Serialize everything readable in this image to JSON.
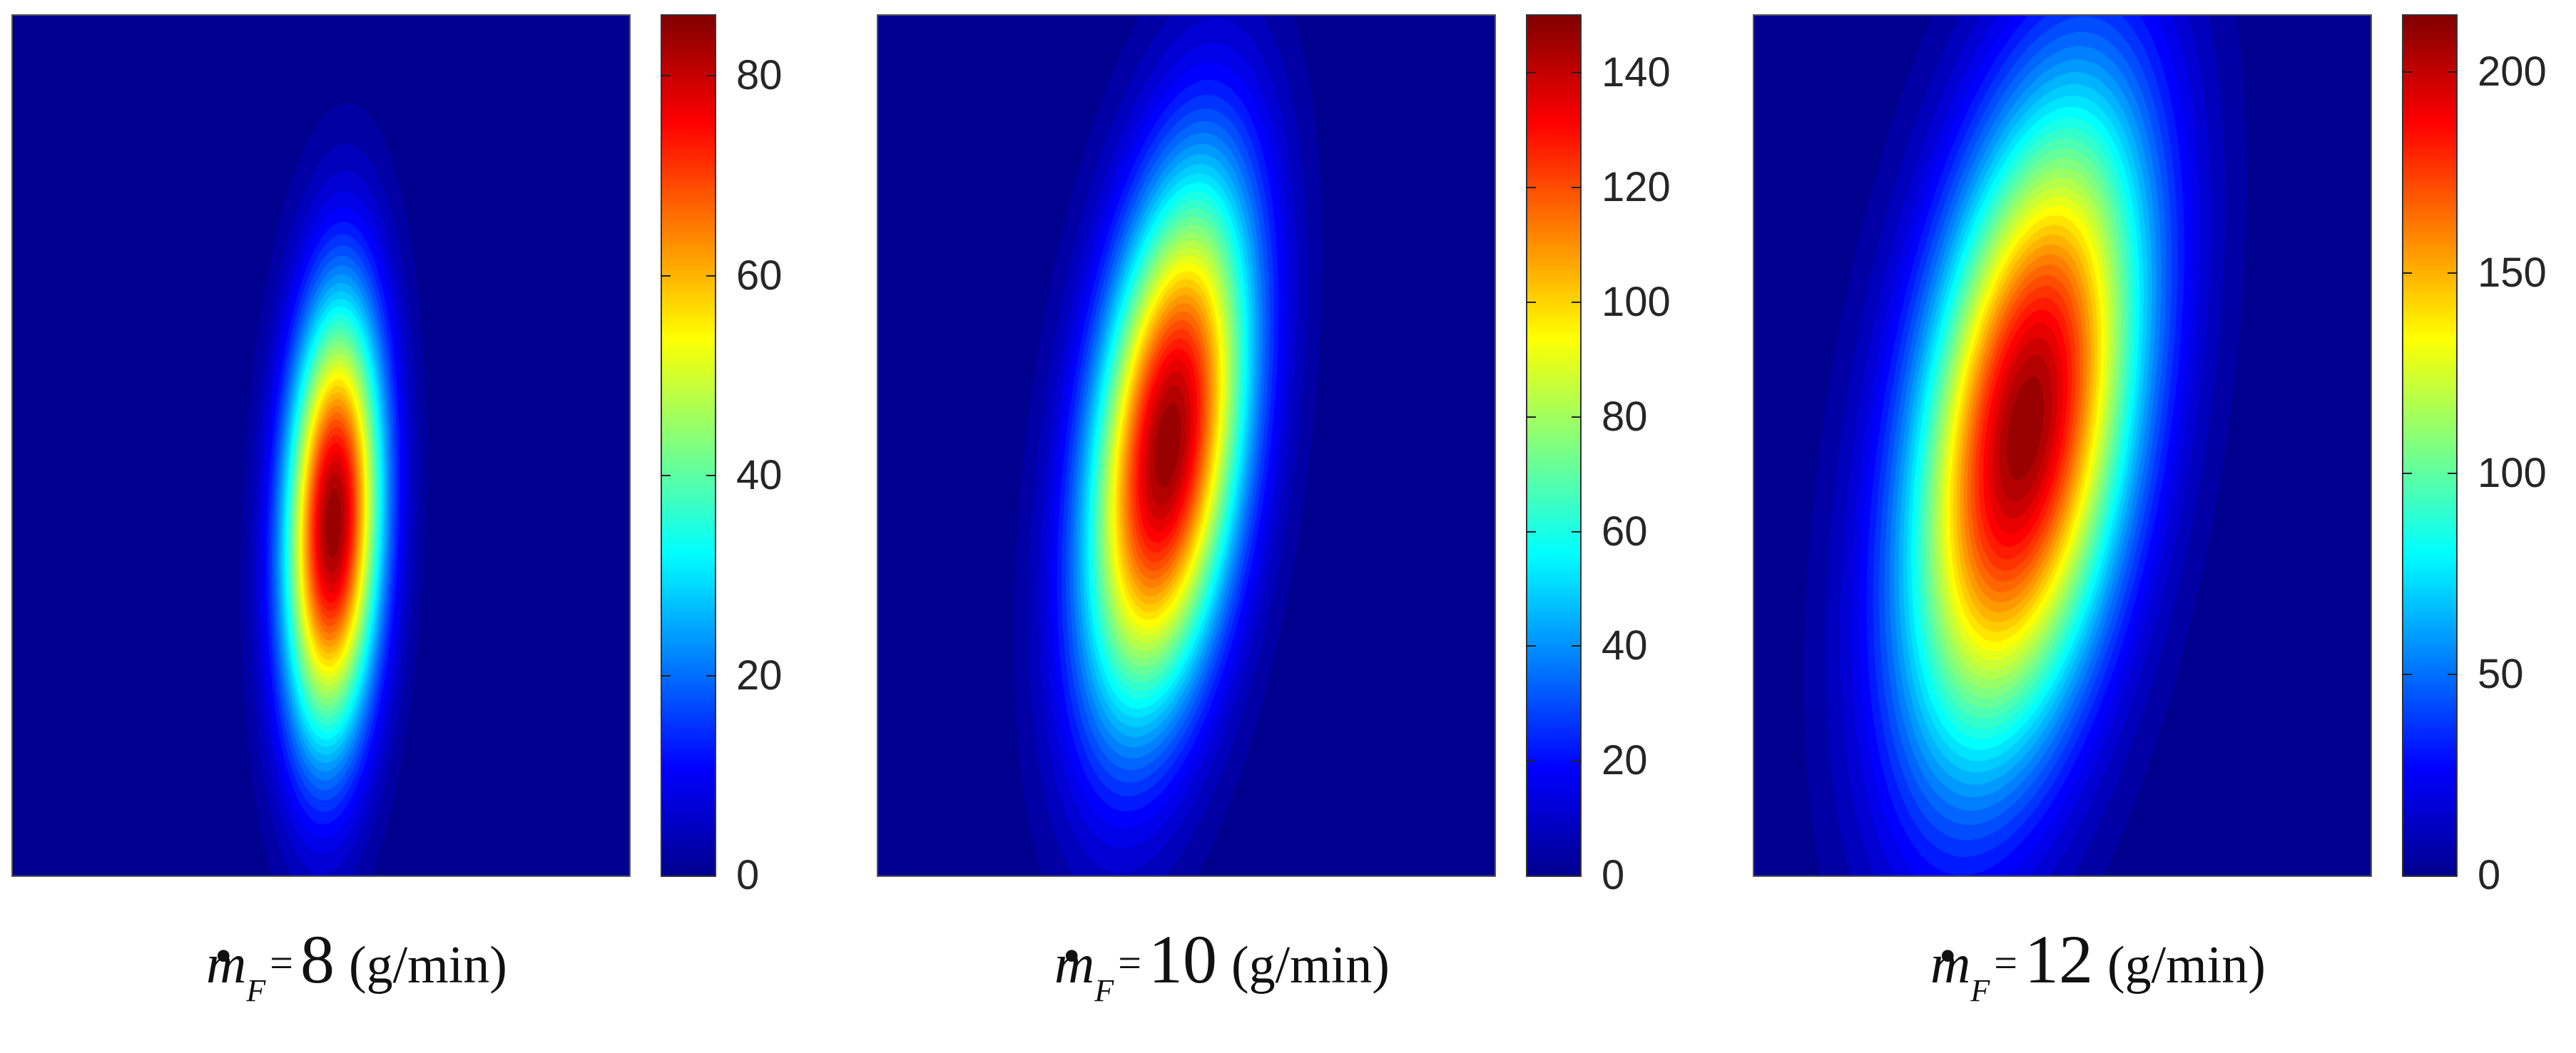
{
  "chart_data": [
    {
      "type": "heatmap",
      "title": "",
      "xlabel": "",
      "ylabel": "",
      "caption": {
        "symbol": "m",
        "dot": "•",
        "subscript": "F",
        "equals": "=",
        "value": "8",
        "unit": "(g/min)"
      },
      "colormap": "jet",
      "colorbar": {
        "min": 0,
        "max": 86,
        "ticks": [
          0,
          20,
          40,
          60,
          80
        ]
      },
      "blobs": [
        {
          "x": 0.52,
          "y": 0.59,
          "sx": 0.055,
          "sy": 0.18,
          "amplitude": 86,
          "tilt_deg": 2
        }
      ]
    },
    {
      "type": "heatmap",
      "title": "",
      "xlabel": "",
      "ylabel": "",
      "caption": {
        "symbol": "m",
        "dot": "•",
        "subscript": "F",
        "equals": "=",
        "value": "10",
        "unit": "(g/min)"
      },
      "colormap": "jet",
      "colorbar": {
        "min": 0,
        "max": 150,
        "ticks": [
          0,
          20,
          40,
          60,
          80,
          100,
          120,
          140
        ]
      },
      "blobs": [
        {
          "x": 0.47,
          "y": 0.5,
          "sx": 0.085,
          "sy": 0.22,
          "amplitude": 150,
          "tilt_deg": 7
        }
      ]
    },
    {
      "type": "heatmap",
      "title": "",
      "xlabel": "",
      "ylabel": "",
      "caption": {
        "symbol": "m",
        "dot": "•",
        "subscript": "F",
        "equals": "=",
        "value": "12",
        "unit": "(g/min)"
      },
      "colormap": "jet",
      "colorbar": {
        "min": 0,
        "max": 214,
        "ticks": [
          0,
          50,
          100,
          150,
          200
        ]
      },
      "blobs": [
        {
          "x": 0.44,
          "y": 0.48,
          "sx": 0.12,
          "sy": 0.27,
          "amplitude": 214,
          "tilt_deg": 9
        }
      ]
    }
  ]
}
